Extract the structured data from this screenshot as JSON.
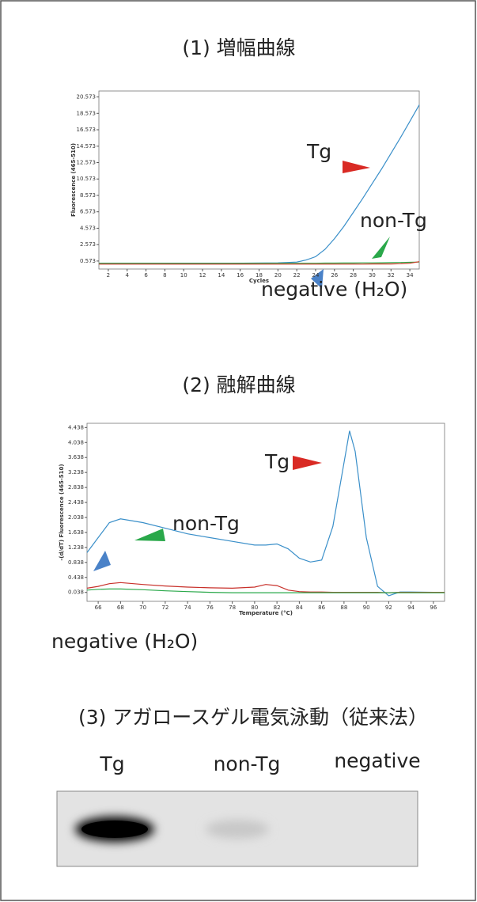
{
  "chart_data": [
    {
      "type": "line",
      "title": "(1) 増幅曲線",
      "xlabel": "Cycles",
      "ylabel": "Fluorescence (465-510)",
      "x": [
        1,
        5,
        10,
        15,
        20,
        22,
        23,
        24,
        25,
        26,
        27,
        28,
        29,
        30,
        31,
        32,
        33,
        34,
        35
      ],
      "series": [
        {
          "name": "Tg",
          "color": "#3a8fc9",
          "values": [
            0.3,
            0.3,
            0.3,
            0.3,
            0.35,
            0.45,
            0.7,
            1.1,
            2.0,
            3.3,
            4.8,
            6.5,
            8.2,
            10.0,
            11.8,
            13.7,
            15.6,
            17.6,
            19.6
          ]
        },
        {
          "name": "non-Tg",
          "color": "#2aa84a",
          "values": [
            0.3,
            0.3,
            0.28,
            0.28,
            0.3,
            0.3,
            0.3,
            0.3,
            0.32,
            0.32,
            0.33,
            0.33,
            0.35,
            0.35,
            0.36,
            0.38,
            0.4,
            0.42,
            0.45
          ]
        },
        {
          "name": "negative (H₂O)",
          "color": "#d23a2a",
          "values": [
            0.2,
            0.2,
            0.2,
            0.2,
            0.2,
            0.2,
            0.2,
            0.2,
            0.2,
            0.2,
            0.2,
            0.2,
            0.2,
            0.22,
            0.22,
            0.22,
            0.25,
            0.3,
            0.5
          ]
        }
      ],
      "xlim": [
        1,
        35
      ],
      "xticks": [
        2,
        4,
        6,
        8,
        10,
        12,
        14,
        16,
        18,
        20,
        22,
        24,
        26,
        28,
        30,
        32,
        34
      ],
      "ylim": [
        -0.4,
        21.3
      ],
      "yticks": [
        0.573,
        2.573,
        4.573,
        6.573,
        8.573,
        10.573,
        12.573,
        14.573,
        16.573,
        18.573,
        20.573
      ]
    },
    {
      "type": "line",
      "title": "(2) 融解曲線",
      "xlabel": "Temperature (°C)",
      "ylabel": "-(d/dT) Fluorescence (465-510)",
      "x": [
        65,
        66,
        67,
        68,
        70,
        72,
        74,
        76,
        78,
        80,
        81,
        82,
        83,
        84,
        85,
        86,
        87,
        88,
        88.5,
        89,
        90,
        91,
        92,
        93,
        94,
        96,
        97
      ],
      "series": [
        {
          "name": "Tg",
          "color": "#3a8fc9",
          "values": [
            1.1,
            1.5,
            1.9,
            2.0,
            1.9,
            1.75,
            1.6,
            1.5,
            1.4,
            1.3,
            1.3,
            1.33,
            1.2,
            0.95,
            0.85,
            0.9,
            1.8,
            3.5,
            4.35,
            3.8,
            1.5,
            0.2,
            -0.05,
            0.05,
            0.05,
            0.04,
            0.04
          ]
        },
        {
          "name": "non-Tg",
          "color": "#c8302a",
          "values": [
            0.15,
            0.2,
            0.27,
            0.3,
            0.25,
            0.21,
            0.18,
            0.16,
            0.15,
            0.18,
            0.25,
            0.22,
            0.1,
            0.06,
            0.05,
            0.05,
            0.04,
            0.04,
            0.04,
            0.04,
            0.04,
            0.04,
            0.03,
            0.04,
            0.04,
            0.04,
            0.04
          ]
        },
        {
          "name": "negative (H₂O)",
          "color": "#2aa84a",
          "values": [
            0.1,
            0.12,
            0.13,
            0.13,
            0.11,
            0.08,
            0.06,
            0.04,
            0.03,
            0.03,
            0.03,
            0.03,
            0.03,
            0.03,
            0.03,
            0.03,
            0.03,
            0.03,
            0.03,
            0.03,
            0.03,
            0.03,
            0.03,
            0.03,
            0.03,
            0.03,
            0.03
          ]
        }
      ],
      "xlim": [
        65,
        97
      ],
      "xticks": [
        66,
        68,
        70,
        72,
        74,
        76,
        78,
        80,
        82,
        84,
        86,
        88,
        90,
        92,
        94,
        96
      ],
      "ylim": [
        -0.2,
        4.55
      ],
      "yticks": [
        0.038,
        0.438,
        0.838,
        1.238,
        1.638,
        2.038,
        2.438,
        2.838,
        3.238,
        3.638,
        4.038,
        4.438
      ]
    }
  ],
  "gel": {
    "title": "(3) アガロースゲル電気泳動（従来法）",
    "lanes": [
      "Tg",
      "non-Tg",
      "negative"
    ]
  }
}
